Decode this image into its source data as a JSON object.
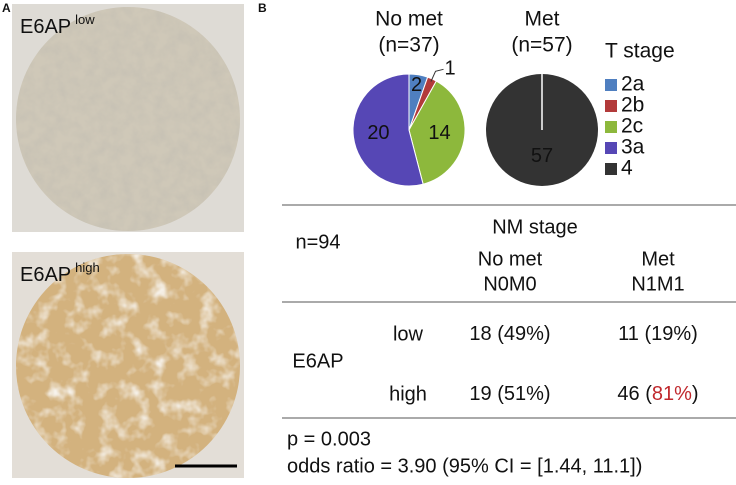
{
  "panel_a": {
    "label": "A",
    "images": [
      {
        "label": "E6AP",
        "superscript": "low"
      },
      {
        "label": "E6AP",
        "superscript": "high"
      }
    ]
  },
  "panel_b": {
    "label": "B"
  },
  "chart_data": [
    {
      "type": "pie",
      "title": "No met",
      "subtitle": "(n=37)",
      "values": [
        2,
        1,
        14,
        20
      ],
      "colors": [
        "#4f7fc0",
        "#b23a3a",
        "#8db83c",
        "#5647b5"
      ]
    },
    {
      "type": "pie",
      "title": "Met",
      "subtitle": "(n=57)",
      "values": [
        57
      ],
      "colors": [
        "#333333"
      ]
    }
  ],
  "legend": {
    "title": "T stage",
    "items": [
      {
        "name": "2a",
        "color": "#4f7fc0"
      },
      {
        "name": "2b",
        "color": "#b23a3a"
      },
      {
        "name": "2c",
        "color": "#8db83c"
      },
      {
        "name": "3a",
        "color": "#5647b5"
      },
      {
        "name": "4",
        "color": "#333333"
      }
    ]
  },
  "table": {
    "corner": "n=94",
    "group_header": "NM stage",
    "columns": [
      [
        "No met",
        "N0M0"
      ],
      [
        "Met",
        "N1M1"
      ]
    ],
    "row_group": "E6AP",
    "rows": [
      {
        "label": "low",
        "cells": [
          [
            "18 (",
            "49%",
            ")"
          ],
          [
            "11 (",
            "19%",
            ")"
          ]
        ]
      },
      {
        "label": "high",
        "cells": [
          [
            "19 (",
            "51%",
            ")"
          ],
          [
            "46 (",
            "81%",
            ")"
          ]
        ]
      }
    ],
    "highlight": {
      "row": 1,
      "col": 1,
      "part": 1,
      "color": "#c0282d"
    }
  },
  "stats": [
    "p = 0.003",
    "odds ratio = 3.90 (95% CI = [1.44, 11.1])"
  ]
}
